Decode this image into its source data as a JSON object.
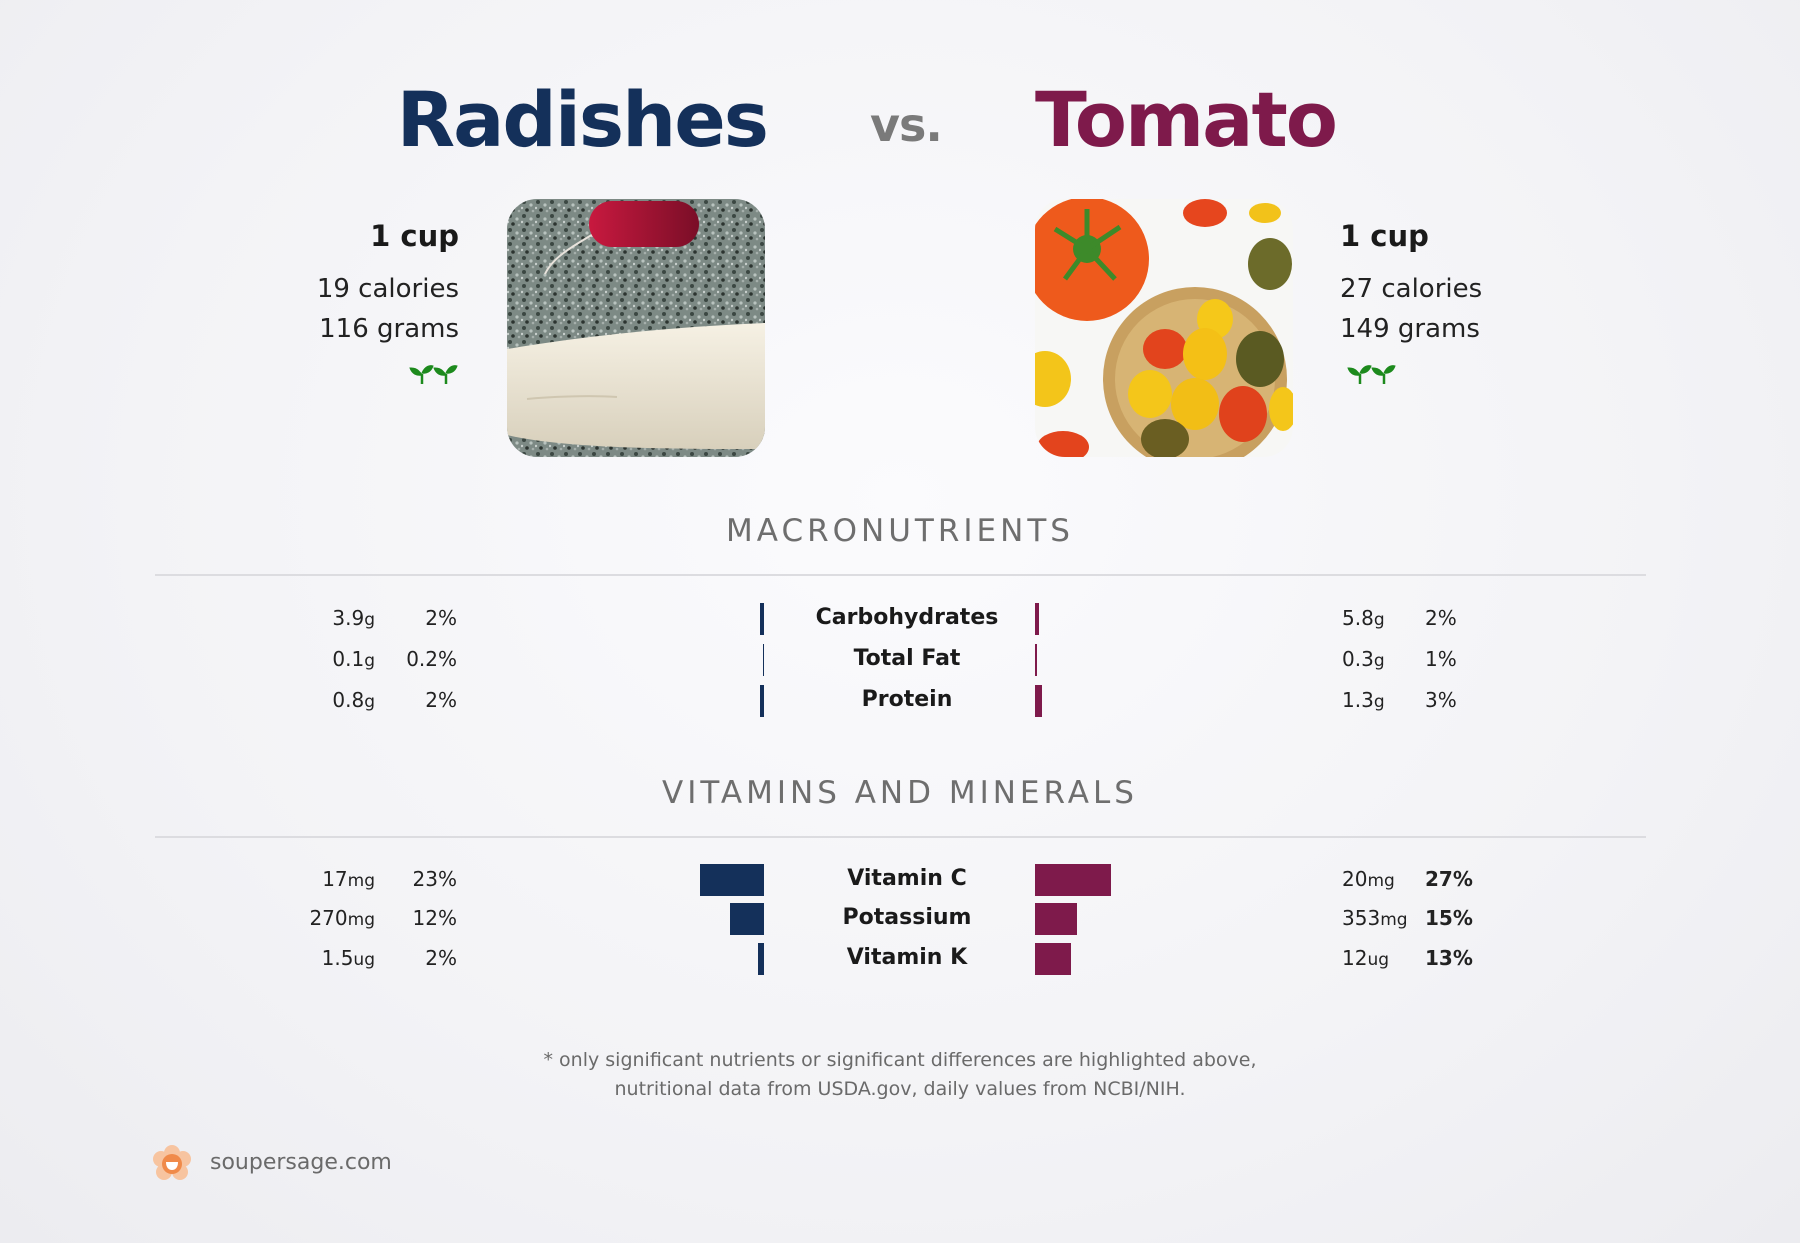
{
  "header": {
    "left_name": "Radishes",
    "vs": "vs.",
    "right_name": "Tomato"
  },
  "left_food": {
    "serving": "1 cup",
    "calories": "19 calories",
    "grams": "116 grams",
    "image": "radish-photo"
  },
  "right_food": {
    "serving": "1 cup",
    "calories": "27 calories",
    "grams": "149 grams",
    "image": "tomato-photo"
  },
  "colors": {
    "left": "#14305a",
    "right": "#7e1a4b"
  },
  "macros": {
    "title": "MACRONUTRIENTS",
    "rows": [
      {
        "label": "Carbohydrates",
        "left_amount": "3.9",
        "left_unit": "g",
        "left_pct": "2%",
        "left_value": 2,
        "right_amount": "5.8",
        "right_unit": "g",
        "right_pct": "2%",
        "right_value": 2
      },
      {
        "label": "Total Fat",
        "left_amount": "0.1",
        "left_unit": "g",
        "left_pct": "0.2%",
        "left_value": 0.2,
        "right_amount": "0.3",
        "right_unit": "g",
        "right_pct": "1%",
        "right_value": 1
      },
      {
        "label": "Protein",
        "left_amount": "0.8",
        "left_unit": "g",
        "left_pct": "2%",
        "left_value": 2,
        "right_amount": "1.3",
        "right_unit": "g",
        "right_pct": "3%",
        "right_value": 3
      }
    ]
  },
  "vitamins": {
    "title": "VITAMINS AND MINERALS",
    "rows": [
      {
        "label": "Vitamin C",
        "left_amount": "17",
        "left_unit": "mg",
        "left_pct": "23%",
        "left_value": 23,
        "right_amount": "20",
        "right_unit": "mg",
        "right_pct": "27%",
        "right_value": 27
      },
      {
        "label": "Potassium",
        "left_amount": "270",
        "left_unit": "mg",
        "left_pct": "12%",
        "left_value": 12,
        "right_amount": "353",
        "right_unit": "mg",
        "right_pct": "15%",
        "right_value": 15
      },
      {
        "label": "Vitamin K",
        "left_amount": "1.5",
        "left_unit": "ug",
        "left_pct": "2%",
        "left_value": 2,
        "right_amount": "12",
        "right_unit": "ug",
        "right_pct": "13%",
        "right_value": 13
      }
    ]
  },
  "chart_data": [
    {
      "type": "bar",
      "title": "MACRONUTRIENTS",
      "categories": [
        "Carbohydrates",
        "Total Fat",
        "Protein"
      ],
      "series": [
        {
          "name": "Radishes",
          "values": [
            2,
            0.2,
            2
          ]
        },
        {
          "name": "Tomato",
          "values": [
            2,
            1,
            3
          ]
        }
      ]
    },
    {
      "type": "bar",
      "title": "VITAMINS AND MINERALS",
      "categories": [
        "Vitamin C",
        "Potassium",
        "Vitamin K"
      ],
      "series": [
        {
          "name": "Radishes",
          "values": [
            23,
            12,
            2
          ]
        },
        {
          "name": "Tomato",
          "values": [
            27,
            15,
            13
          ]
        }
      ]
    }
  ],
  "footnote": {
    "line1": "* only significant nutrients or significant differences are highlighted above,",
    "line2": "nutritional data from USDA.gov, daily values from NCBI/NIH."
  },
  "brand": {
    "text": "soupersage.com",
    "icon": "soupersage-logo-icon"
  }
}
